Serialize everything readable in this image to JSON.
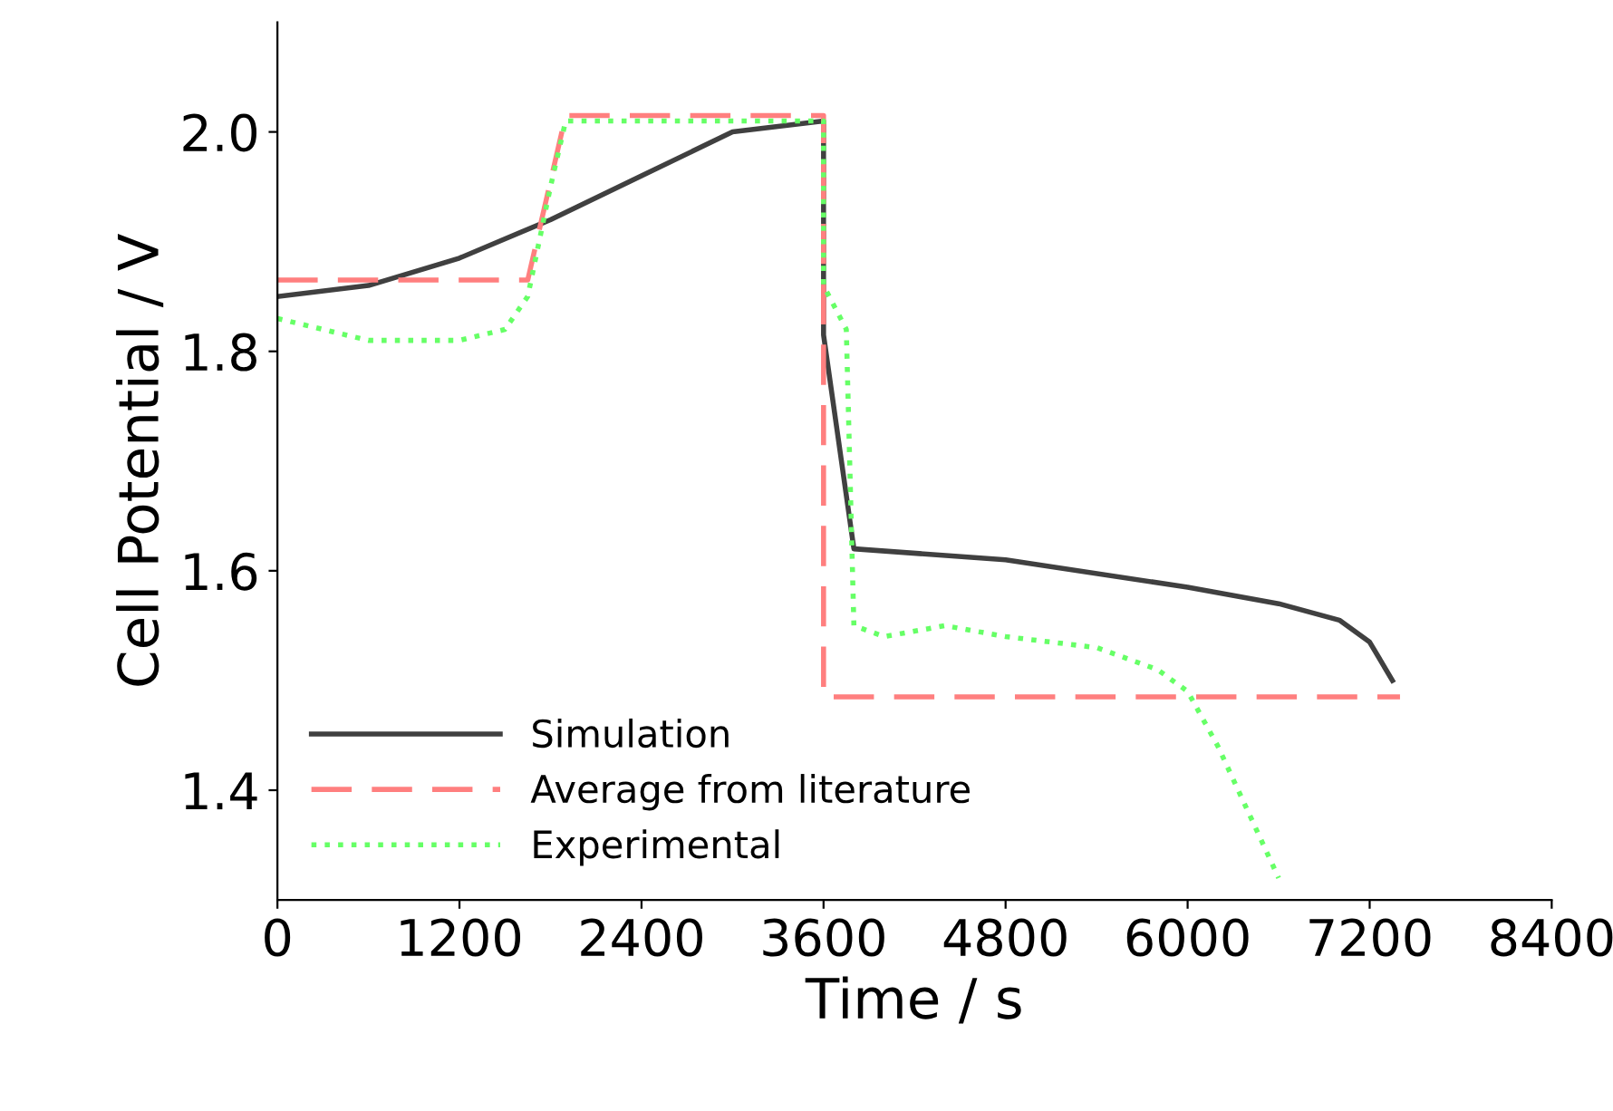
{
  "chart_data": {
    "type": "line",
    "xlabel": "Time / s",
    "ylabel": "Cell Potential / V",
    "xlim": [
      0,
      8400
    ],
    "xticks": [
      0,
      1200,
      2400,
      3600,
      4800,
      6000,
      7200,
      8400
    ],
    "ylim": [
      1.3,
      2.1
    ],
    "yticks": [
      1.4,
      1.6,
      1.8,
      {
        "value": 2.0,
        "label": "2.0"
      }
    ],
    "grid": false,
    "legend": "bottom left",
    "marker": "none",
    "series": [
      {
        "name": "Simulation",
        "color": "#404040",
        "line_style": "solid",
        "x": [
          0,
          600,
          1200,
          1800,
          2400,
          3000,
          3600,
          3600,
          3800,
          4800,
          6000,
          6600,
          7000,
          7200,
          7350
        ],
        "values": [
          1.85,
          1.86,
          1.885,
          1.92,
          1.96,
          2.0,
          2.01,
          1.815,
          1.62,
          1.61,
          1.585,
          1.57,
          1.555,
          1.535,
          1.5
        ]
      },
      {
        "name": "Average from literature",
        "color": "#ff7f7f",
        "line_style": "dashed",
        "x": [
          0,
          1650,
          1900,
          3600,
          3600,
          7400
        ],
        "values": [
          1.865,
          1.865,
          2.015,
          2.015,
          1.485,
          1.485
        ]
      },
      {
        "name": "Experimental",
        "color": "#66ff66",
        "line_style": "dotted",
        "x": [
          0,
          300,
          600,
          1200,
          1500,
          1650,
          1800,
          1900,
          3600,
          3600,
          3750,
          3800,
          4000,
          4400,
          4800,
          5400,
          5800,
          6000,
          6200,
          6400,
          6600
        ],
        "values": [
          1.83,
          1.82,
          1.81,
          1.81,
          1.82,
          1.85,
          1.95,
          2.01,
          2.01,
          1.86,
          1.82,
          1.55,
          1.54,
          1.55,
          1.54,
          1.53,
          1.51,
          1.49,
          1.44,
          1.38,
          1.32
        ]
      }
    ]
  }
}
